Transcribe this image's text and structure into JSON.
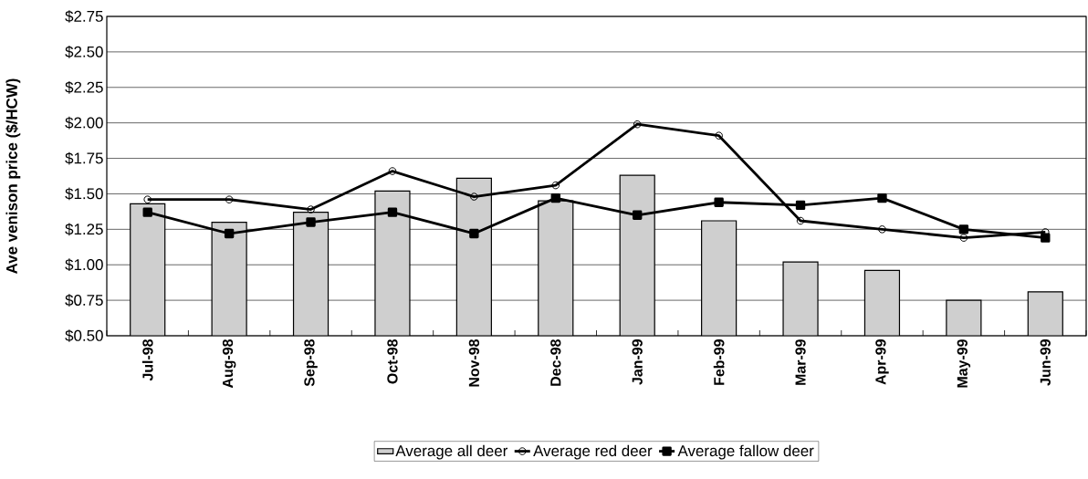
{
  "chart_data": {
    "type": "bar",
    "ylabel": "Ave venison price ($/HCW)",
    "categories": [
      "Jul-98",
      "Aug-98",
      "Sep-98",
      "Oct-98",
      "Nov-98",
      "Dec-98",
      "Jan-99",
      "Feb-99",
      "Mar-99",
      "Apr-99",
      "May-99",
      "Jun-99"
    ],
    "series": [
      {
        "name": "Average all deer",
        "color": "#cfcfcf",
        "values": [
          1.43,
          1.3,
          1.37,
          1.52,
          1.61,
          1.45,
          1.63,
          1.31,
          1.02,
          0.96,
          0.75,
          0.81
        ]
      },
      {
        "name": "Average red deer",
        "type": "line",
        "color": "#000000",
        "marker": "circle",
        "line_style": "solid",
        "values": [
          1.46,
          1.46,
          1.39,
          1.66,
          1.48,
          1.56,
          1.99,
          1.91,
          1.31,
          1.25,
          1.19,
          1.23
        ]
      },
      {
        "name": "Average fallow deer",
        "type": "line",
        "color": "#000000",
        "marker": "square",
        "line_style": "solid",
        "values": [
          1.37,
          1.22,
          1.3,
          1.37,
          1.22,
          1.47,
          1.35,
          1.44,
          1.42,
          1.47,
          1.25,
          1.19
        ]
      }
    ],
    "ylim": [
      0.5,
      2.75
    ],
    "yticks": [
      {
        "value": 0.5,
        "label": "$0.50"
      },
      {
        "value": 0.75,
        "label": "$0.75"
      },
      {
        "value": 1.0,
        "label": "$1.00"
      },
      {
        "value": 1.25,
        "label": "$1.25"
      },
      {
        "value": 1.5,
        "label": "$1.50"
      },
      {
        "value": 1.75,
        "label": "$1.75"
      },
      {
        "value": 2.0,
        "label": "$2.00"
      },
      {
        "value": 2.25,
        "label": "$2.25"
      },
      {
        "value": 2.5,
        "label": "$2.50"
      },
      {
        "value": 2.75,
        "label": "$2.75"
      }
    ],
    "grid": "y",
    "legend": "bottom"
  }
}
